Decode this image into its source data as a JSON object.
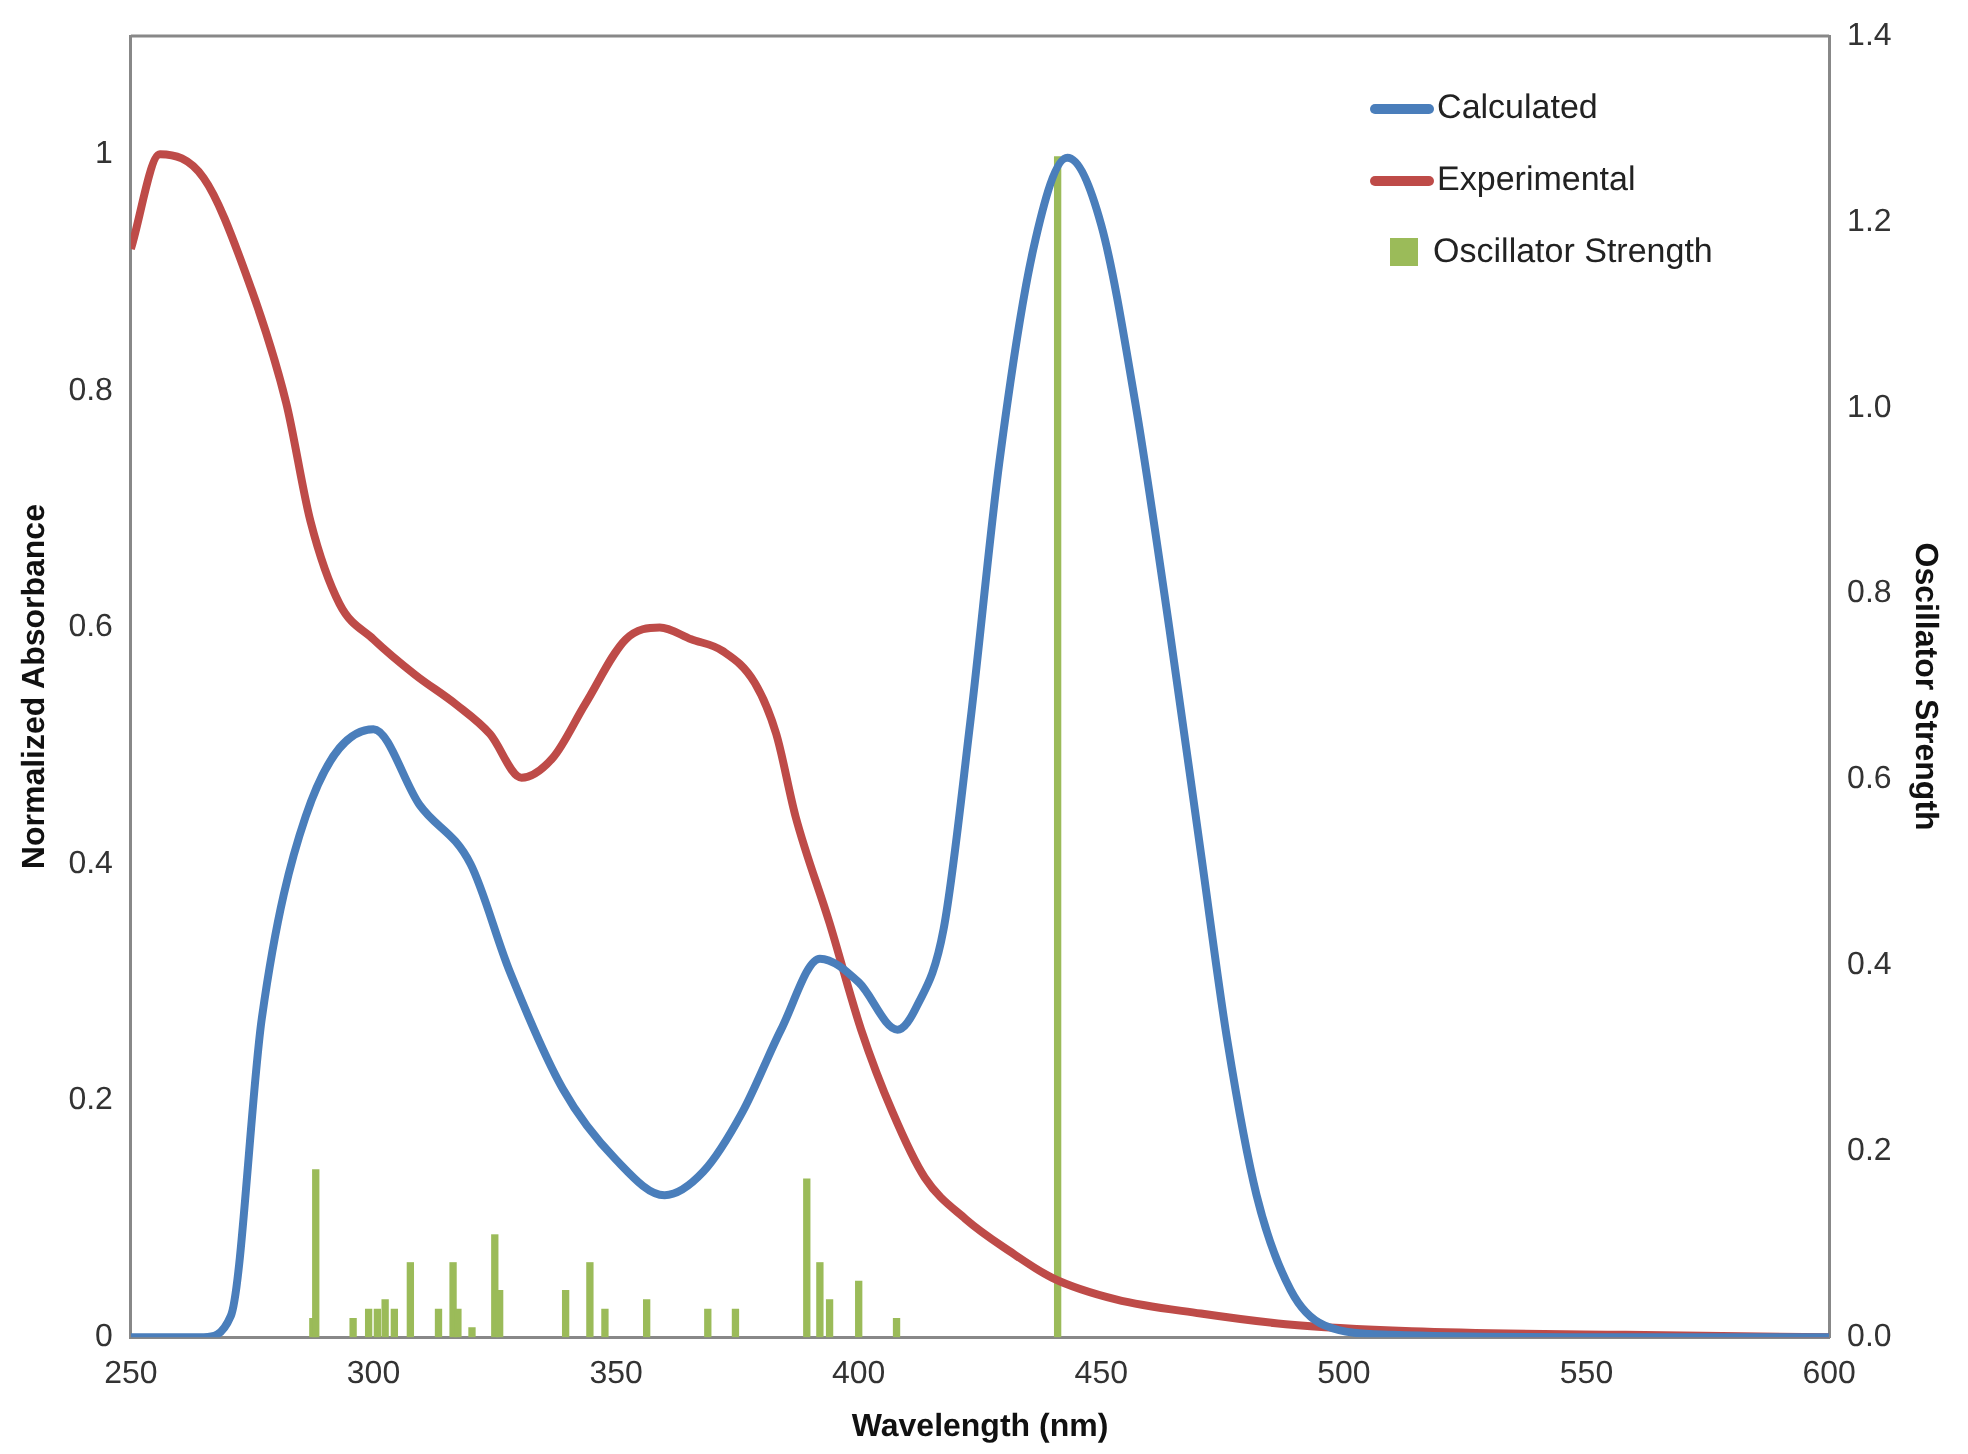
{
  "chart_data": {
    "type": "line",
    "xlabel": "Wavelength (nm)",
    "ylabel": "Normalized Absorbance",
    "y2label": "Oscillator Strength",
    "xlim": [
      250,
      600
    ],
    "xticks": [
      250,
      300,
      350,
      400,
      450,
      500,
      550,
      600
    ],
    "ylim": [
      0,
      1.1
    ],
    "yticks": [
      0,
      0.2,
      0.4,
      0.6,
      0.8,
      1
    ],
    "y2lim": [
      0,
      1.4
    ],
    "y2ticks": [
      {
        "value": 0,
        "label": "0.0"
      },
      {
        "value": 0.2,
        "label": "0.2"
      },
      {
        "value": 0.4,
        "label": "0.4"
      },
      {
        "value": 0.6,
        "label": "0.6"
      },
      {
        "value": 0.8,
        "label": "0.8"
      },
      {
        "value": 1,
        "label": "1.0"
      },
      {
        "value": 1.2,
        "label": "1.2"
      },
      {
        "value": 1.4,
        "label": "1.4"
      }
    ],
    "grid": false,
    "legend": "top right",
    "marker": "none",
    "line_style": "solid",
    "series": [
      {
        "name": "Calculated",
        "color": "#4a7ebb",
        "x": [
          250,
          265,
          270.6,
          277,
          286,
          300,
          309.5,
          320,
          328,
          339,
          350,
          360,
          368,
          376,
          384,
          392,
          400,
          408,
          412,
          417.5,
          423,
          429,
          436,
          443,
          450,
          457,
          464,
          470.5,
          476,
          482,
          489,
          496,
          510,
          550,
          600
        ],
        "values": [
          0,
          0,
          0.018,
          0.27,
          0.44,
          0.514,
          0.45,
          0.4,
          0.31,
          0.21,
          0.15,
          0.12,
          0.14,
          0.19,
          0.26,
          0.32,
          0.3,
          0.26,
          0.28,
          0.345,
          0.52,
          0.74,
          0.92,
          0.997,
          0.94,
          0.79,
          0.6,
          0.41,
          0.25,
          0.12,
          0.04,
          0.01,
          0.002,
          0,
          0
        ]
      },
      {
        "name": "Experimental",
        "color": "#be4b48",
        "x": [
          250,
          256,
          265,
          273.6,
          282,
          287,
          293,
          300,
          308.6,
          317,
          324,
          330.5,
          337,
          343.6,
          352,
          359,
          365.5,
          372,
          378.6,
          383,
          387,
          394,
          400.5,
          407,
          413.6,
          422,
          431,
          440,
          453,
          470.5,
          488,
          514,
          558,
          600
        ],
        "values": [
          0.92,
          1,
          0.98,
          0.9,
          0.79,
          0.69,
          0.62,
          0.59,
          0.56,
          0.535,
          0.51,
          0.473,
          0.49,
          0.535,
          0.59,
          0.6,
          0.59,
          0.58,
          0.553,
          0.51,
          0.44,
          0.35,
          0.26,
          0.19,
          0.135,
          0.1,
          0.073,
          0.05,
          0.032,
          0.02,
          0.011,
          0.005,
          0.002,
          0
        ]
      },
      {
        "name": "Oscillator Strength",
        "type": "bar",
        "axis": "y2",
        "color": "#9bbb59",
        "x": [
          287.5,
          288.1,
          295.8,
          299,
          300.8,
          302.4,
          304.3,
          307.6,
          313.4,
          316.4,
          317.4,
          320.3,
          325,
          326,
          339.6,
          344.6,
          347.7,
          356.3,
          368.9,
          374.6,
          389.3,
          392,
          394,
          400,
          407.8,
          441
        ],
        "values": [
          0.02,
          0.18,
          0.02,
          0.03,
          0.03,
          0.04,
          0.03,
          0.08,
          0.03,
          0.08,
          0.03,
          0.01,
          0.11,
          0.05,
          0.05,
          0.08,
          0.03,
          0.04,
          0.03,
          0.03,
          0.17,
          0.08,
          0.04,
          0.06,
          0.02,
          1.27
        ]
      }
    ]
  }
}
